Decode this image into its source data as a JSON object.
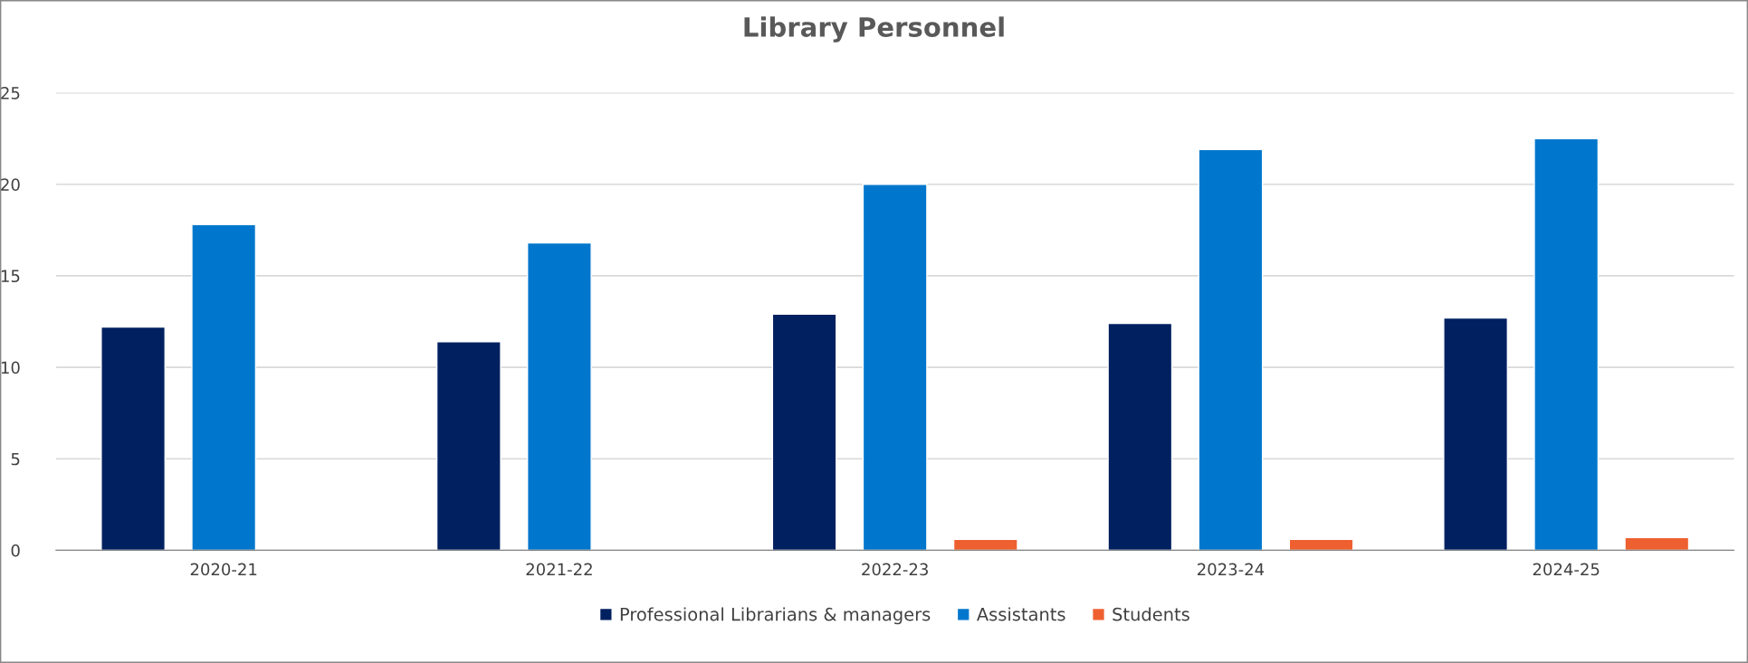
{
  "chart_data": {
    "type": "bar",
    "title": "Library Personnel",
    "categories": [
      "2020-21",
      "2021-22",
      "2022-23",
      "2023-24",
      "2024-25"
    ],
    "series": [
      {
        "name": "Professional Librarians & managers",
        "color": "#002060",
        "values": [
          12.2,
          11.4,
          12.9,
          12.4,
          12.7
        ]
      },
      {
        "name": "Assistants",
        "color": "#0077cc",
        "values": [
          17.8,
          16.8,
          20,
          21.9,
          22.5
        ]
      },
      {
        "name": "Students",
        "color": "#ee6030",
        "values": [
          null,
          null,
          0.6,
          0.6,
          0.7
        ]
      }
    ],
    "ylim": [
      0,
      25
    ],
    "yticks": [
      0,
      5,
      10,
      15,
      20,
      25
    ],
    "grid": "y",
    "legend": "bottom"
  }
}
